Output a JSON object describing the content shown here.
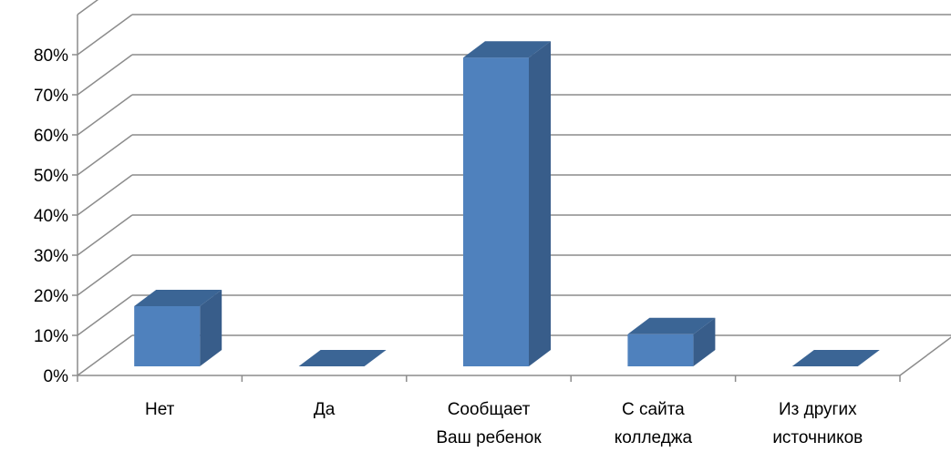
{
  "chart_data": {
    "type": "bar",
    "style": "3d-column",
    "categories": [
      [
        "Нет"
      ],
      [
        "Да"
      ],
      [
        "Сообщает",
        "Ваш ребенок"
      ],
      [
        "С сайта",
        "колледжа"
      ],
      [
        "Из других",
        "источников"
      ]
    ],
    "values": [
      15,
      0,
      77,
      8,
      0
    ],
    "yticks": [
      "0%",
      "10%",
      "20%",
      "30%",
      "40%",
      "50%",
      "60%",
      "70%",
      "80%"
    ],
    "ylim": [
      0,
      80
    ],
    "title": "",
    "xlabel": "",
    "ylabel": "",
    "grid": true,
    "legend": "none",
    "colors": {
      "bar_front": "#4f81bd",
      "bar_side": "#385d8a",
      "bar_top": "#3b6595",
      "grid": "#8c8c8c"
    }
  }
}
